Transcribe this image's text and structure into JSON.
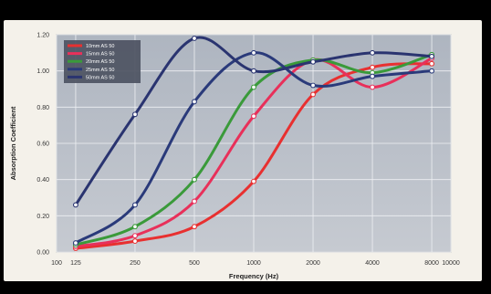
{
  "chart_data": {
    "type": "line",
    "xlabel": "Frequency (Hz)",
    "ylabel": "Absorption Coefficient",
    "x_scale": "log",
    "xlim": [
      100,
      10000
    ],
    "ylim": [
      0,
      1.2
    ],
    "grid": true,
    "legend_position": "top-left",
    "x_tick_labels": [
      "100",
      "125",
      "250",
      "500",
      "1000",
      "2000",
      "4000",
      "8000",
      "10000"
    ],
    "y_tick_labels": [
      "0.00",
      "0.20",
      "0.40",
      "0.60",
      "0.80",
      "1.00",
      "1.20"
    ],
    "x_ticks": [
      100,
      125,
      250,
      500,
      1000,
      2000,
      4000,
      8000,
      10000
    ],
    "y_ticks": [
      0,
      0.2,
      0.4,
      0.6,
      0.8,
      1.0,
      1.2
    ],
    "x": [
      125,
      250,
      500,
      1000,
      2000,
      4000,
      8000
    ],
    "series": [
      {
        "name": "10mm AS 50",
        "color": "#e83030",
        "values": [
          0.02,
          0.06,
          0.14,
          0.39,
          0.87,
          1.02,
          1.04
        ]
      },
      {
        "name": "15mm AS 50",
        "color": "#e8305a",
        "values": [
          0.03,
          0.09,
          0.28,
          0.75,
          1.06,
          0.91,
          1.07
        ]
      },
      {
        "name": "20mm AS 50",
        "color": "#3a9a3a",
        "values": [
          0.04,
          0.14,
          0.4,
          0.91,
          1.06,
          0.99,
          1.09
        ]
      },
      {
        "name": "25mm AS 50",
        "color": "#2a3a7a",
        "values": [
          0.05,
          0.26,
          0.83,
          1.1,
          0.92,
          0.97,
          1.0
        ]
      },
      {
        "name": "50mm AS 50",
        "color": "#2a3470",
        "values": [
          0.26,
          0.76,
          1.18,
          1.0,
          1.05,
          1.1,
          1.08
        ]
      }
    ]
  }
}
